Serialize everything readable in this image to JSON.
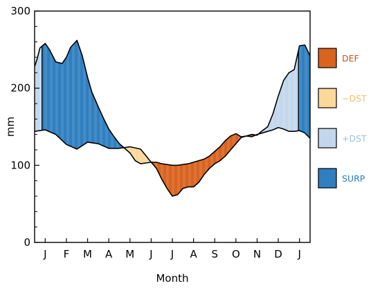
{
  "chart_data": {
    "type": "area",
    "xlabel": "Month",
    "ylabel": "mm",
    "xlim": [
      0.5,
      13.5
    ],
    "ylim": [
      0,
      300
    ],
    "yticks": [
      0,
      100,
      200,
      300
    ],
    "months": [
      "J",
      "F",
      "M",
      "A",
      "M",
      "J",
      "J",
      "A",
      "S",
      "O",
      "N",
      "D",
      "J"
    ],
    "month_positions": [
      1,
      2,
      3,
      4,
      5,
      6,
      7,
      8,
      9,
      10,
      11,
      12,
      13
    ],
    "grid": false,
    "legend_position": "right",
    "legend": [
      {
        "key": "DEF",
        "label": "DEF",
        "color": "#d9631f",
        "text_color": "#c8501a"
      },
      {
        "key": "MDST",
        "label": "−DST",
        "color": "#fbd99a",
        "text_color": "#f2c067"
      },
      {
        "key": "PDST",
        "label": "+DST",
        "color": "#c3d7ec",
        "text_color": "#9fbfdf"
      },
      {
        "key": "SURP",
        "label": "SURP",
        "color": "#2f7fc0",
        "text_color": "#2a7bc0"
      }
    ],
    "series": [
      {
        "name": "",
        "x": [
          0.5,
          0.62,
          0.75,
          1.0,
          1.2,
          1.5,
          1.8,
          2.0,
          2.2,
          2.5,
          2.75,
          3.0,
          3.2,
          3.5,
          3.75,
          4.0,
          4.25,
          4.5,
          4.75,
          5.0,
          5.25,
          5.5,
          5.75,
          6.0,
          6.25,
          6.5,
          6.75,
          7.0,
          7.25,
          7.5,
          7.75,
          8.0,
          8.25,
          8.5,
          8.75,
          9.0,
          9.25,
          9.5,
          9.75,
          10.0,
          10.25,
          10.5,
          10.75,
          11.0,
          11.25,
          11.5,
          11.75,
          12.0,
          12.25,
          12.5,
          12.75,
          13.0,
          13.25,
          13.5
        ],
        "values": [
          228,
          238,
          252,
          258,
          250,
          234,
          232,
          240,
          253,
          262,
          242,
          214,
          195,
          176,
          161,
          147,
          137,
          128,
          122,
          116,
          106,
          102,
          103,
          104,
          104,
          102,
          101,
          100,
          100,
          101,
          102,
          104,
          106,
          108,
          112,
          118,
          124,
          132,
          138,
          141,
          137,
          138,
          140,
          139,
          145,
          150,
          167,
          190,
          210,
          220,
          224,
          255,
          256,
          242
        ]
      },
      {
        "name": "",
        "x": [
          0.5,
          1.0,
          1.5,
          2.0,
          2.5,
          3.0,
          3.5,
          4.0,
          4.5,
          5.0,
          5.5,
          6.0,
          6.25,
          6.5,
          6.75,
          7.0,
          7.25,
          7.5,
          7.75,
          8.0,
          8.25,
          8.5,
          8.75,
          9.0,
          9.25,
          9.5,
          9.75,
          10.0,
          10.25,
          10.5,
          10.75,
          11.0,
          11.25,
          11.5,
          11.75,
          12.0,
          12.25,
          12.5,
          12.75,
          13.0,
          13.25,
          13.5
        ],
        "values": [
          144,
          146,
          140,
          127,
          121,
          130,
          128,
          122,
          122,
          124,
          121,
          104,
          96,
          82,
          70,
          60,
          62,
          70,
          72,
          72,
          78,
          88,
          96,
          102,
          106,
          112,
          120,
          128,
          136,
          138,
          137,
          140,
          142,
          144,
          146,
          149,
          147,
          144,
          144,
          145,
          142,
          135
        ]
      }
    ]
  }
}
